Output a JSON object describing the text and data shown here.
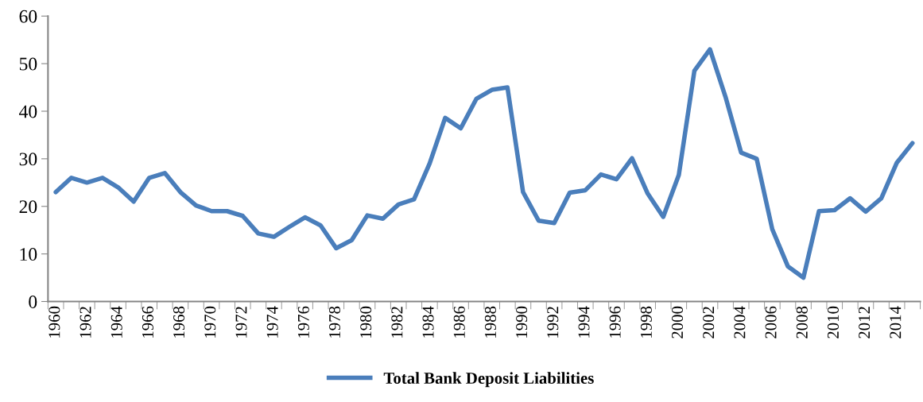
{
  "chart_data": {
    "type": "line",
    "categories": [
      "1960",
      null,
      "1962",
      null,
      "1964",
      null,
      "1966",
      null,
      "1968",
      null,
      "1970",
      null,
      "1972",
      null,
      "1974",
      null,
      "1976",
      null,
      "1978",
      null,
      "1980",
      null,
      "1982",
      null,
      "1984",
      null,
      "1986",
      null,
      "1988",
      null,
      "1990",
      null,
      "1992",
      null,
      "1994",
      null,
      "1996",
      null,
      "1998",
      null,
      "2000",
      null,
      "2002",
      null,
      "2004",
      null,
      "2006",
      null,
      "2008",
      null,
      "2010",
      null,
      "2012",
      null,
      "2014",
      null
    ],
    "series": [
      {
        "name": "Total Bank Deposit Liabilities",
        "color": "#4a7ebb",
        "values": [
          23,
          26,
          25,
          26,
          24,
          21,
          26,
          27,
          23,
          20.2,
          19,
          19,
          18,
          14.3,
          13.6,
          15.7,
          17.7,
          16,
          11.2,
          12.9,
          18.1,
          17.4,
          20.4,
          21.5,
          29,
          38.6,
          36.4,
          42.6,
          44.5,
          45,
          23,
          17,
          16.5,
          22.9,
          23.4,
          26.7,
          25.7,
          30.1,
          22.7,
          17.8,
          26.6,
          48.5,
          53,
          43,
          31.3,
          30,
          15.2,
          7.4,
          5,
          19,
          19.2,
          21.7,
          18.9,
          21.7,
          29.2,
          33.3
        ]
      }
    ],
    "ylim": [
      0,
      60
    ],
    "yticks": [
      0,
      10,
      20,
      30,
      40,
      50,
      60
    ],
    "grid": false,
    "legend": "bottom",
    "marker": "none",
    "line_style": "solid"
  }
}
